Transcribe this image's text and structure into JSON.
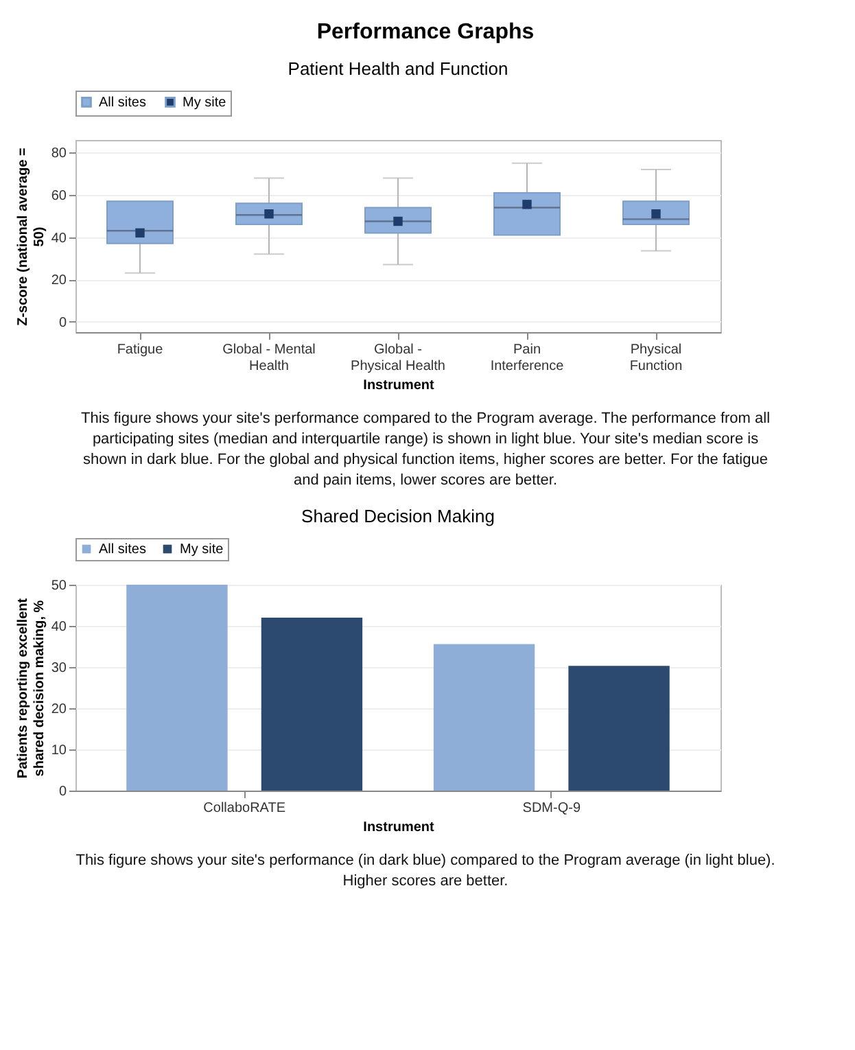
{
  "chart_data": [
    {
      "type": "other",
      "title": "Performance Graphs"
    },
    {
      "type": "box",
      "title": "Patient Health and Function",
      "xlabel": "Instrument",
      "ylabel": "Z-score (national average = 50)",
      "categories": [
        "Fatigue",
        "Global - Mental Health",
        "Global - Physical Health",
        "Pain Interference",
        "Physical Function"
      ],
      "series": [
        {
          "name": "All sites",
          "type": "box",
          "color": "#8fb0dc",
          "boxes": [
            {
              "low": 23,
              "q1": 37,
              "median": 43,
              "q3": 57,
              "high": 57
            },
            {
              "low": 32,
              "q1": 46,
              "median": 50.5,
              "q3": 56,
              "high": 68
            },
            {
              "low": 27,
              "q1": 42,
              "median": 47.5,
              "q3": 54,
              "high": 68
            },
            {
              "low": 41,
              "q1": 41,
              "median": 54,
              "q3": 61,
              "high": 75
            },
            {
              "low": 33.5,
              "q1": 46,
              "median": 48.5,
              "q3": 57,
              "high": 72
            }
          ]
        },
        {
          "name": "My site",
          "type": "scatter",
          "color": "#1f3d6b",
          "x": [
            "Fatigue",
            "Global - Mental Health",
            "Global - Physical Health",
            "Pain Interference",
            "Physical Function"
          ],
          "values": [
            42,
            51,
            47.5,
            55.5,
            51
          ]
        }
      ],
      "ylim": [
        -5,
        86
      ],
      "yticks": [
        0,
        20,
        40,
        60,
        80
      ],
      "grid": "y",
      "legend": "top",
      "marker": "square",
      "annotations": [
        "This figure shows your site's performance compared to the Program average. The performance from all participating sites (median and interquartile range) is shown in light blue. Your site's median score is shown in dark blue. For the global and physical function items, higher scores are better. For the fatigue and pain items, lower scores are better."
      ]
    },
    {
      "type": "bar",
      "title": "Shared Decision Making",
      "xlabel": "Instrument",
      "ylabel": "Patients reporting excellent shared decision making, %",
      "categories": [
        "CollaboRATE",
        "SDM-Q-9"
      ],
      "series": [
        {
          "name": "All sites",
          "color": "#8eaed8",
          "values": [
            50,
            35.6
          ]
        },
        {
          "name": "My site",
          "color": "#2c4a70",
          "values": [
            42,
            30.3
          ]
        }
      ],
      "ylim": [
        0,
        50
      ],
      "yticks": [
        0,
        10,
        20,
        30,
        40,
        50
      ],
      "grid": "y",
      "legend": "top",
      "annotations": [
        "This figure shows your site's performance (in dark blue) compared to the Program average (in light blue). Higher scores are better."
      ]
    }
  ]
}
